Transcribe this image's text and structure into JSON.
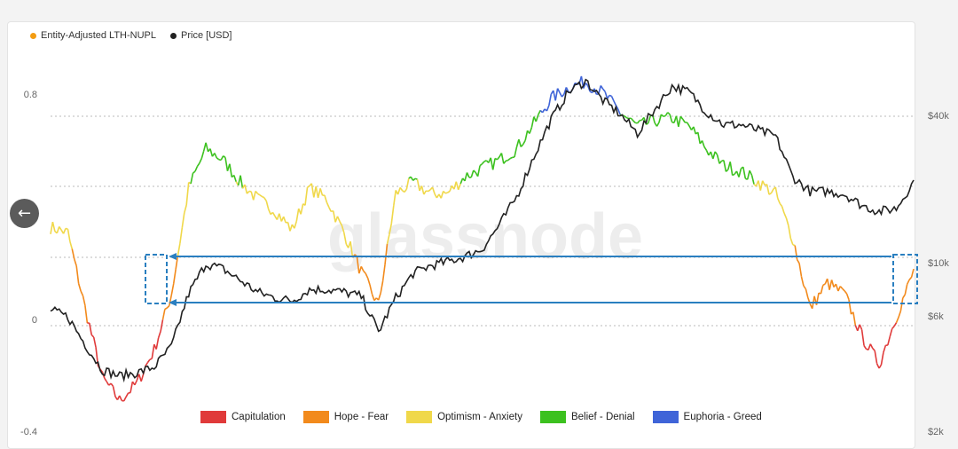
{
  "app": {
    "back_icon": "arrow-left-icon"
  },
  "legend_top": [
    {
      "label": "Entity-Adjusted LTH-NUPL",
      "color": "#f39c12"
    },
    {
      "label": "Price [USD]",
      "color": "#222222"
    }
  ],
  "legend_bottom": [
    {
      "label": "Capitulation",
      "color": "#e03a3a"
    },
    {
      "label": "Hope - Fear",
      "color": "#f28a1c"
    },
    {
      "label": "Optimism - Anxiety",
      "color": "#f0d84a"
    },
    {
      "label": "Belief - Denial",
      "color": "#3cc11f"
    },
    {
      "label": "Euphoria - Greed",
      "color": "#3f64d8"
    }
  ],
  "watermark": "glassnode",
  "colors": {
    "capitulation": "#e03a3a",
    "hope": "#f28a1c",
    "optimism": "#f0d84a",
    "belief": "#3cc11f",
    "euphoria": "#3f64d8",
    "price": "#222222",
    "annotation": "#2a7fc0"
  },
  "chart_data": {
    "type": "line",
    "y_left": {
      "ticks": [
        "0.8",
        "0",
        "-0.4"
      ],
      "range": [
        -0.4,
        1.0
      ]
    },
    "y_right": {
      "ticks": [
        "$40k",
        "$10k",
        "$6k",
        "$2k"
      ],
      "scale": "log",
      "range": [
        2000,
        70000
      ]
    },
    "series": [
      {
        "name": "Entity-Adjusted LTH-NUPL",
        "x": [
          0,
          2,
          4,
          6,
          8,
          10,
          12,
          14,
          16,
          18,
          20,
          22,
          24,
          26,
          28,
          30,
          32,
          34,
          36,
          38,
          40,
          42,
          44,
          46,
          48,
          50,
          52,
          54,
          56,
          58,
          60,
          62,
          64,
          66,
          68,
          70,
          72,
          74,
          76,
          78,
          80,
          82,
          84,
          86,
          88,
          90,
          92,
          94,
          96,
          98,
          100
        ],
        "values": [
          0.34,
          0.32,
          0.05,
          -0.2,
          -0.28,
          -0.22,
          -0.1,
          0.1,
          0.48,
          0.62,
          0.58,
          0.5,
          0.44,
          0.4,
          0.33,
          0.48,
          0.44,
          0.32,
          0.18,
          0.06,
          0.46,
          0.5,
          0.46,
          0.46,
          0.52,
          0.55,
          0.58,
          0.62,
          0.71,
          0.8,
          0.84,
          0.86,
          0.82,
          0.75,
          0.7,
          0.72,
          0.73,
          0.7,
          0.62,
          0.56,
          0.54,
          0.5,
          0.46,
          0.3,
          0.05,
          0.14,
          0.1,
          -0.05,
          -0.15,
          0.02,
          0.18
        ]
      },
      {
        "name": "Price [USD]",
        "x": [
          0,
          2,
          4,
          6,
          8,
          10,
          12,
          14,
          16,
          18,
          20,
          22,
          24,
          26,
          28,
          30,
          32,
          34,
          36,
          38,
          40,
          42,
          44,
          46,
          48,
          50,
          52,
          54,
          56,
          58,
          60,
          62,
          64,
          66,
          68,
          70,
          72,
          74,
          76,
          78,
          80,
          82,
          84,
          86,
          88,
          90,
          92,
          94,
          96,
          98,
          100
        ],
        "values": [
          6400,
          6000,
          4600,
          3600,
          3400,
          3500,
          3700,
          4500,
          7500,
          10000,
          9500,
          8500,
          7600,
          7200,
          7000,
          7800,
          7800,
          7600,
          7300,
          5200,
          7200,
          9100,
          9800,
          10200,
          10700,
          11500,
          14500,
          19000,
          28000,
          40000,
          52000,
          58000,
          48000,
          42000,
          35000,
          44000,
          55000,
          52000,
          43000,
          38000,
          38000,
          36000,
          34000,
          23000,
          20000,
          20000,
          19500,
          17500,
          16500,
          17000,
          22000
        ]
      }
    ],
    "annotations": [
      {
        "type": "dashed-box",
        "label": ""
      },
      {
        "type": "dashed-box",
        "label": ""
      },
      {
        "type": "horizontal-arrow",
        "label": ""
      },
      {
        "type": "horizontal-arrow",
        "label": ""
      }
    ],
    "grid": true,
    "legend_position": "top-left and bottom"
  }
}
